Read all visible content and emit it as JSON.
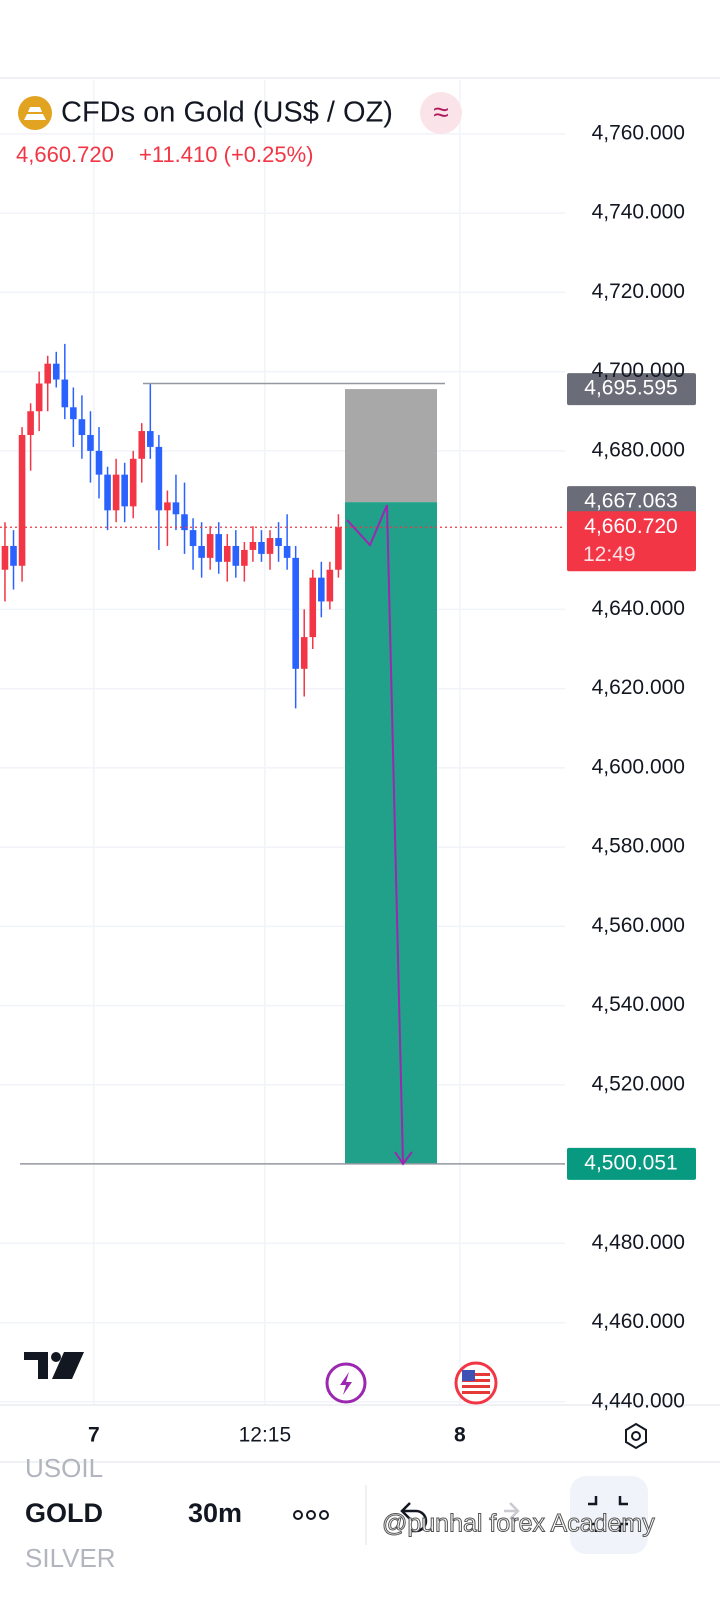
{
  "chart_data": {
    "type": "candlestick",
    "title": "CFDs on Gold (US$ / OZ)",
    "last_price": "4,660.720",
    "change": "+11.410 (+0.25%)",
    "up_color": "#f23645",
    "down_color": "#2962ff",
    "open": [
      4650,
      4656,
      4651,
      4684,
      4690,
      4697,
      4702,
      4698,
      4691,
      4688,
      4684,
      4680,
      4674,
      4665,
      4674,
      4666,
      4678,
      4685,
      4681,
      4665,
      4667,
      4664,
      4660,
      4656,
      4653,
      4659,
      4652,
      4656,
      4651,
      4655,
      4657,
      4654,
      4658,
      4656,
      4653,
      4625,
      4633,
      4648,
      4642,
      4650
    ],
    "high": [
      4662,
      4660,
      4686,
      4692,
      4700,
      4704,
      4705,
      4707,
      4696,
      4694,
      4690,
      4686,
      4676,
      4678,
      4677,
      4680,
      4687,
      4697,
      4684,
      4670,
      4674,
      4672,
      4663,
      4662,
      4661,
      4662,
      4659,
      4660,
      4657,
      4661,
      4660,
      4660,
      4662,
      4664,
      4656,
      4640,
      4650,
      4652,
      4652,
      4664
    ],
    "low": [
      4642,
      4645,
      4647,
      4675,
      4685,
      4690,
      4696,
      4688,
      4681,
      4678,
      4672,
      4668,
      4660,
      4662,
      4662,
      4663,
      4672,
      4678,
      4655,
      4656,
      4660,
      4654,
      4650,
      4648,
      4650,
      4649,
      4647,
      4648,
      4647,
      4652,
      4652,
      4650,
      4652,
      4650,
      4615,
      4618,
      4630,
      4638,
      4640,
      4648
    ],
    "close": [
      4656,
      4651,
      4684,
      4690,
      4697,
      4702,
      4698,
      4691,
      4688,
      4684,
      4680,
      4674,
      4665,
      4674,
      4666,
      4678,
      4685,
      4681,
      4665,
      4667,
      4664,
      4660,
      4656,
      4653,
      4659,
      4652,
      4656,
      4651,
      4655,
      4657,
      4654,
      4658,
      4656,
      4653,
      4625,
      4633,
      4648,
      4642,
      4650,
      4660.72
    ],
    "xlim": [
      -0.58,
      65.5
    ],
    "xticks": [
      {
        "value": 10.4,
        "label": "7"
      },
      {
        "value": 30.4,
        "label": "12:15"
      },
      {
        "value": 53.2,
        "label": "8"
      }
    ],
    "ylim": [
      4439.2,
      4773.6
    ],
    "yticks": [
      {
        "value": 4760,
        "label": "4,760.000"
      },
      {
        "value": 4740,
        "label": "4,740.000"
      },
      {
        "value": 4720,
        "label": "4,720.000"
      },
      {
        "value": 4700,
        "label": "4,700.000"
      },
      {
        "value": 4680,
        "label": "4,680.000"
      },
      {
        "value": 4640,
        "label": "4,640.000"
      },
      {
        "value": 4620,
        "label": "4,620.000"
      },
      {
        "value": 4600,
        "label": "4,600.000"
      },
      {
        "value": 4580,
        "label": "4,580.000"
      },
      {
        "value": 4560,
        "label": "4,560.000"
      },
      {
        "value": 4540,
        "label": "4,540.000"
      },
      {
        "value": 4520,
        "label": "4,520.000"
      },
      {
        "value": 4480,
        "label": "4,480.000"
      },
      {
        "value": 4460,
        "label": "4,460.000"
      },
      {
        "value": 4440,
        "label": "4,440.000"
      }
    ],
    "grid": true,
    "position": {
      "stop": {
        "value": 4695.595,
        "label": "4,695.595",
        "color": "#6a6d78"
      },
      "entry": {
        "value": 4667.063,
        "label": "4,667.063",
        "color": "#6a6d78"
      },
      "target": {
        "value": 4500.051,
        "label": "4,500.051",
        "color": "#089981"
      },
      "stop_color": "#a8a8a8",
      "target_color": "#22a18a"
    },
    "current": {
      "value": 4660.72,
      "label": "4,660.720",
      "countdown": "12:49",
      "color": "#f23645"
    },
    "high_line": 4697
  },
  "toolbar": {
    "symbols": [
      "USOIL",
      "GOLD",
      "SILVER"
    ],
    "interval": "30m"
  },
  "watermark": "@punhal forex Academy"
}
